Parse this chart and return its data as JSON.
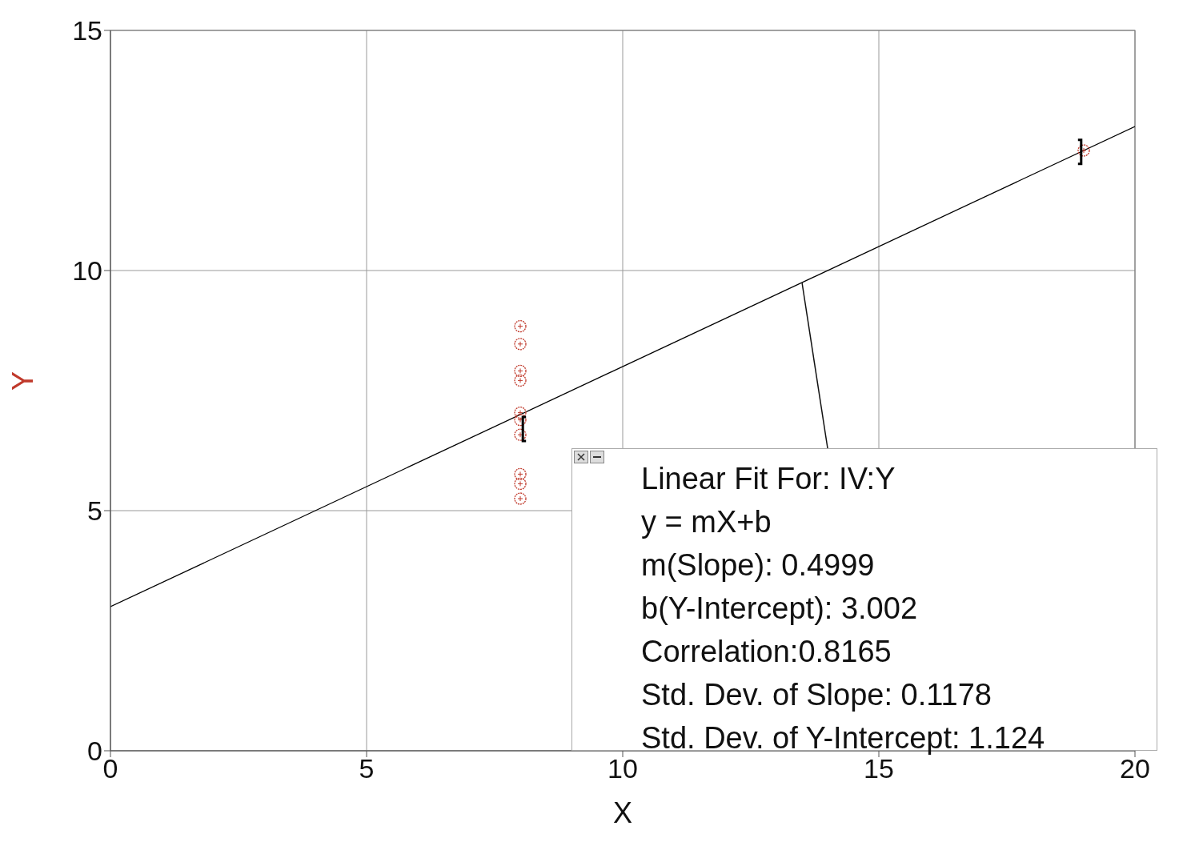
{
  "chart_data": {
    "type": "scatter",
    "xlabel": "X",
    "ylabel": "Y",
    "xlim": [
      0,
      20
    ],
    "ylim": [
      0,
      15
    ],
    "xticks": [
      0,
      5,
      10,
      15,
      20
    ],
    "yticks": [
      0,
      5,
      10,
      15
    ],
    "grid": true,
    "series": [
      {
        "marker": "circle",
        "color": "#c0392b",
        "x": [
          8,
          8,
          8,
          8,
          8,
          8,
          8,
          19,
          8,
          8,
          8
        ],
        "values": [
          6.58,
          5.76,
          7.71,
          8.84,
          8.47,
          7.04,
          5.25,
          12.5,
          5.56,
          7.91,
          6.89
        ]
      },
      {
        "type": "line",
        "marker": "none",
        "color": "#000000",
        "x": [
          0,
          20
        ],
        "values": [
          3.0,
          13.0
        ]
      }
    ],
    "annotations": [
      {
        "text": "Linear Fit For:  IV:Y",
        "x": 13.5,
        "y": 9.75
      },
      "y = mX+b",
      "m(Slope): 0.4999",
      "b(Y-Intercept): 3.002",
      "Correlation:0.8165",
      "Std. Dev. of Slope: 0.1178",
      "Std. Dev. of Y-Intercept: 1.124"
    ]
  }
}
